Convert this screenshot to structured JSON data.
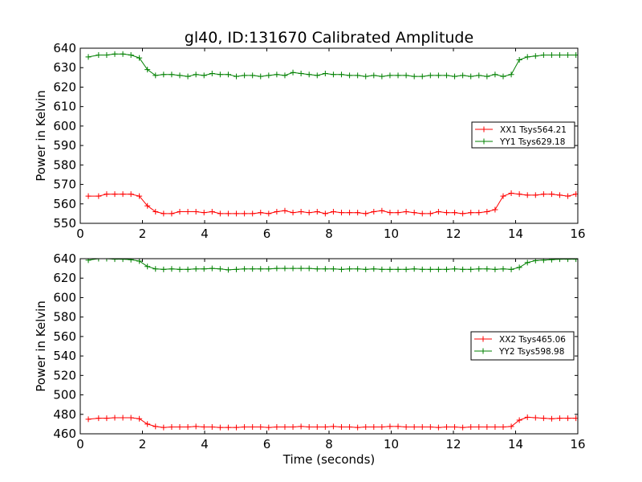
{
  "chart_data": [
    {
      "type": "line",
      "title": "gl40, ID:131670 Calibrated Amplitude",
      "xlabel": "",
      "ylabel": "Power in Kelvin",
      "xlim": [
        0,
        16
      ],
      "ylim": [
        550,
        640
      ],
      "xticks": [
        "0",
        "2",
        "4",
        "6",
        "8",
        "10",
        "12",
        "14",
        "16"
      ],
      "yticks": [
        "550",
        "560",
        "570",
        "580",
        "590",
        "600",
        "610",
        "620",
        "630",
        "640"
      ],
      "legend_position": "center-right",
      "x": [
        0.26,
        0.59,
        0.85,
        1.11,
        1.37,
        1.63,
        1.9,
        2.16,
        2.42,
        2.68,
        2.94,
        3.2,
        3.46,
        3.72,
        3.98,
        4.24,
        4.5,
        4.76,
        5.02,
        5.28,
        5.54,
        5.8,
        6.06,
        6.32,
        6.58,
        6.84,
        7.1,
        7.36,
        7.62,
        7.88,
        8.14,
        8.4,
        8.66,
        8.92,
        9.18,
        9.44,
        9.7,
        9.96,
        10.22,
        10.48,
        10.74,
        11.0,
        11.26,
        11.52,
        11.78,
        12.04,
        12.3,
        12.56,
        12.82,
        13.08,
        13.34,
        13.6,
        13.86,
        14.12,
        14.38,
        14.64,
        14.9,
        15.16,
        15.42,
        15.68,
        15.94
      ],
      "series": [
        {
          "name": "XX1 Tsys564.21",
          "color": "#ff0000",
          "values": [
            564,
            564,
            565,
            565,
            565,
            565,
            564,
            559,
            556,
            555,
            555,
            556,
            556,
            556,
            555.5,
            556,
            555,
            555,
            555,
            555,
            555,
            555.5,
            555,
            556,
            556.5,
            555.5,
            556,
            555.5,
            556,
            555,
            556,
            555.5,
            555.5,
            555.5,
            555,
            556,
            556.5,
            555.5,
            555.5,
            556,
            555.5,
            555,
            555,
            556,
            555.5,
            555.5,
            555,
            555.5,
            555.5,
            556,
            557,
            564,
            565.5,
            565,
            564.5,
            564.5,
            565,
            565,
            564.5,
            564,
            565
          ]
        },
        {
          "name": "YY1 Tsys629.18",
          "color": "#008000",
          "values": [
            635.5,
            636.5,
            636.5,
            637,
            637,
            636.5,
            635,
            629,
            626,
            626.5,
            626.5,
            626,
            625.5,
            626.5,
            626,
            627,
            626.5,
            626.5,
            625.5,
            626,
            626,
            625.5,
            626,
            626.5,
            626,
            627.5,
            627,
            626.5,
            626,
            627,
            626.5,
            626.5,
            626,
            626,
            625.5,
            626,
            625.5,
            626,
            626,
            626,
            625.5,
            625.5,
            626,
            626,
            626,
            625.5,
            626,
            625.5,
            626,
            625.5,
            626.5,
            625.5,
            626.5,
            634,
            635.5,
            636,
            636.5,
            636.5,
            636.5,
            636.5,
            636.5
          ]
        }
      ]
    },
    {
      "type": "line",
      "title": "",
      "xlabel": "Time (seconds)",
      "ylabel": "Power in Kelvin",
      "xlim": [
        0,
        16
      ],
      "ylim": [
        460,
        640
      ],
      "xticks": [
        "0",
        "2",
        "4",
        "6",
        "8",
        "10",
        "12",
        "14",
        "16"
      ],
      "yticks": [
        "460",
        "480",
        "500",
        "520",
        "540",
        "560",
        "580",
        "600",
        "620",
        "640"
      ],
      "legend_position": "center-right",
      "x": [
        0.26,
        0.59,
        0.85,
        1.11,
        1.37,
        1.63,
        1.9,
        2.16,
        2.42,
        2.68,
        2.94,
        3.2,
        3.46,
        3.72,
        3.98,
        4.24,
        4.5,
        4.76,
        5.02,
        5.28,
        5.54,
        5.8,
        6.06,
        6.32,
        6.58,
        6.84,
        7.1,
        7.36,
        7.62,
        7.88,
        8.14,
        8.4,
        8.66,
        8.92,
        9.18,
        9.44,
        9.7,
        9.96,
        10.22,
        10.48,
        10.74,
        11.0,
        11.26,
        11.52,
        11.78,
        12.04,
        12.3,
        12.56,
        12.82,
        13.08,
        13.34,
        13.6,
        13.86,
        14.12,
        14.38,
        14.64,
        14.9,
        15.16,
        15.42,
        15.68,
        15.94
      ],
      "series": [
        {
          "name": "XX2 Tsys465.06",
          "color": "#ff0000",
          "values": [
            475,
            476,
            476,
            476.5,
            476.5,
            476.5,
            475.5,
            470,
            467.5,
            466.5,
            467,
            467,
            467,
            467.5,
            467,
            467,
            466.5,
            466.5,
            466.5,
            467,
            467,
            467,
            466.5,
            467,
            467,
            467,
            467.5,
            467,
            467,
            467,
            467.5,
            467,
            467,
            466.5,
            467,
            467,
            467,
            467.5,
            467.5,
            467,
            467,
            467,
            467,
            466.5,
            467,
            467,
            466.5,
            467,
            467,
            467,
            467,
            467,
            467.5,
            474,
            477,
            476.5,
            476,
            475.5,
            476,
            476,
            476
          ]
        },
        {
          "name": "YY2 Tsys598.98",
          "color": "#008000",
          "values": [
            638.5,
            640,
            640,
            639.5,
            639.5,
            639,
            637.5,
            632,
            629.5,
            629,
            629.5,
            629,
            629,
            629.5,
            629.5,
            630,
            629.5,
            628.5,
            629,
            629.5,
            629.5,
            629.5,
            629.5,
            630,
            630,
            630,
            630,
            630,
            629.5,
            629.5,
            629.5,
            629,
            629.5,
            629.5,
            629,
            629.5,
            629,
            629,
            629,
            629,
            629.5,
            629,
            629,
            629,
            629,
            629.5,
            629,
            629,
            629.5,
            629.5,
            629,
            629.5,
            629,
            631,
            636,
            638,
            638.5,
            639,
            639.5,
            639.5,
            639.5
          ]
        }
      ]
    }
  ]
}
